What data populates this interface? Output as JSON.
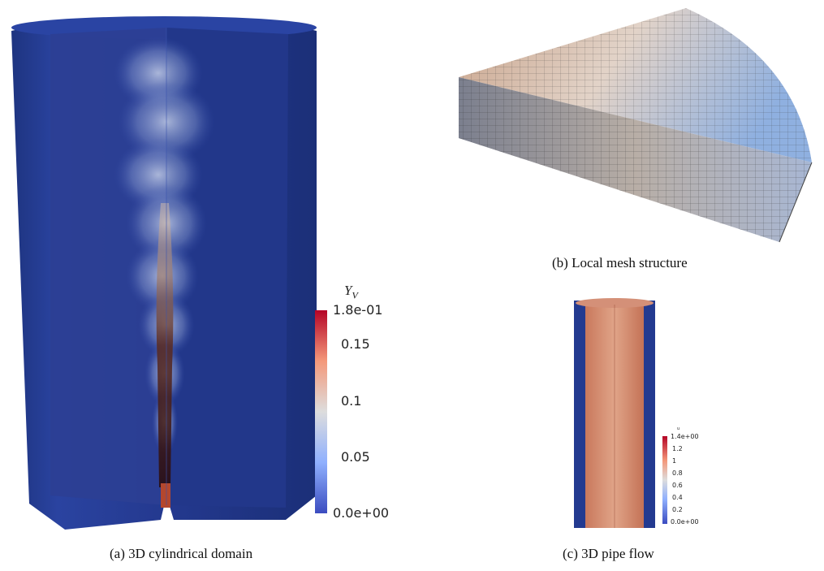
{
  "panel_a": {
    "caption": "(a) 3D cylindrical domain",
    "colorbar": {
      "title": "Y",
      "title_sub": "V",
      "ticks": [
        "1.8e-01",
        "0.15",
        "0.1",
        "0.05",
        "0.0e+00"
      ],
      "colors": {
        "low": "#3b4cc0",
        "mid": "#dddddd",
        "high": "#b40426"
      }
    },
    "domain_color": "#223a8c"
  },
  "panel_b": {
    "caption": "(b) Local mesh structure"
  },
  "panel_c": {
    "caption": "(c) 3D pipe flow",
    "colorbar": {
      "title": "u",
      "ticks": [
        "1.4e+00",
        "1.2",
        "1",
        "0.8",
        "0.6",
        "0.4",
        "0.2",
        "0.0e+00"
      ]
    }
  }
}
